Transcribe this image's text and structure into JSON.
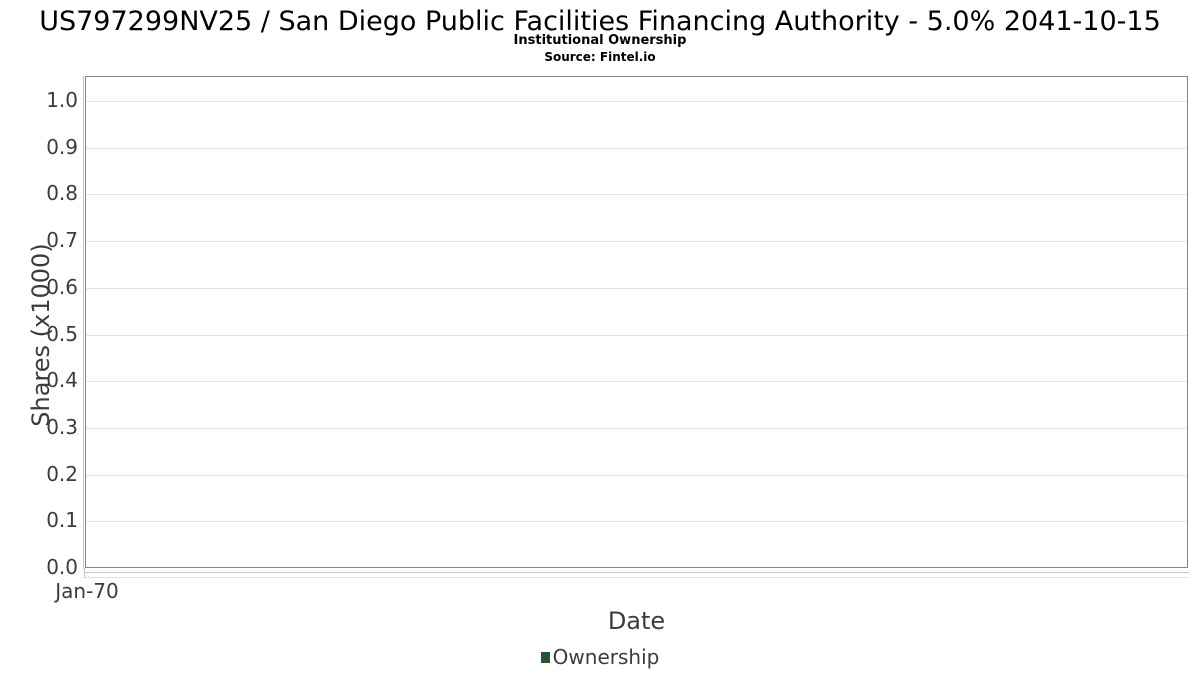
{
  "header": {
    "title": "US797299NV25 / San Diego Public Facilities Financing Authority - 5.0% 2041-10-15",
    "subtitle": "Institutional Ownership",
    "source": "Source: Fintel.io"
  },
  "chart_data": {
    "type": "line",
    "title": "US797299NV25 / San Diego Public Facilities Financing Authority - 5.0% 2041-10-15",
    "subtitle": "Institutional Ownership",
    "source_note": "Source: Fintel.io",
    "xlabel": "Date",
    "ylabel": "Shares (x1000)",
    "x_tick_labels": [
      "Jan-70"
    ],
    "y_ticks": [
      0.0,
      0.1,
      0.2,
      0.3,
      0.4,
      0.5,
      0.6,
      0.7,
      0.8,
      0.9,
      1.0
    ],
    "y_tick_labels": [
      "0.0",
      "0.1",
      "0.2",
      "0.3",
      "0.4",
      "0.5",
      "0.6",
      "0.7",
      "0.8",
      "0.9",
      "1.0"
    ],
    "ylim": [
      0.0,
      1.05
    ],
    "grid": "horizontal",
    "legend_position": "bottom-center",
    "series": [
      {
        "name": "Ownership",
        "color": "#215732",
        "x": [],
        "values": []
      }
    ]
  },
  "legend": {
    "items": [
      {
        "label": "Ownership",
        "color": "#215732"
      }
    ]
  },
  "colors": {
    "background": "#ffffff",
    "plot_border": "#848484",
    "gridline": "#e4e4e4",
    "axis_line": "#c8c8c8",
    "text_primary": "#000000",
    "text_axis": "#3c3c3c",
    "legend_marker": "#215732"
  }
}
